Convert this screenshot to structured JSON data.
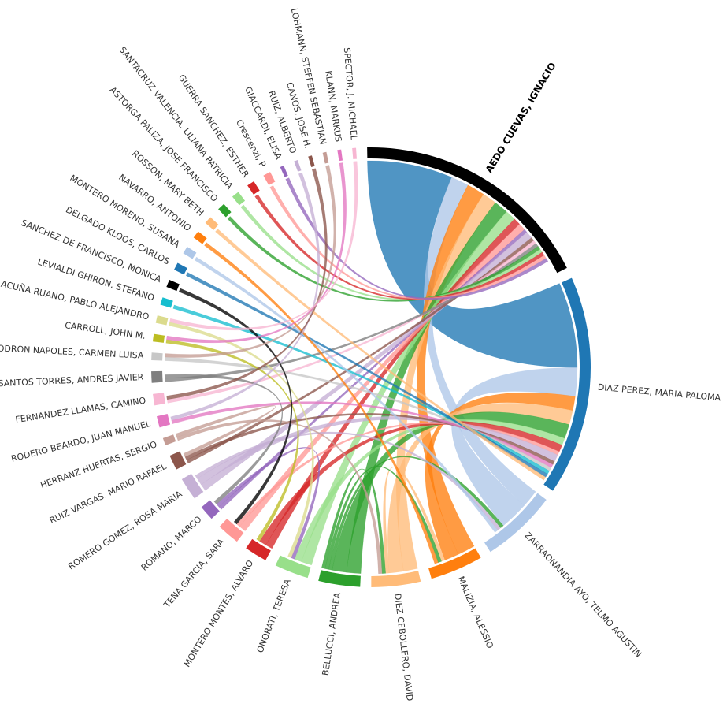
{
  "chart_data": {
    "type": "chord",
    "groups": [
      {
        "name": "AEDO CUEVAS, IGNACIO",
        "color": "#000000",
        "value": 64
      },
      {
        "name": "DIAZ PEREZ, MARIA PALOMA",
        "color": "#1f77b4",
        "value": 58
      },
      {
        "name": "ZARRAONANDIA AYO, TELMO AGUSTIN",
        "color": "#aec7e8",
        "value": 20
      },
      {
        "name": "MALIZIA, ALESSIO",
        "color": "#ff7f0e",
        "value": 14
      },
      {
        "name": "DIEZ CEBOLLERO, DAVID",
        "color": "#ffbb78",
        "value": 13
      },
      {
        "name": "BELLUCCI, ANDREA",
        "color": "#2ca02c",
        "value": 11
      },
      {
        "name": "ONORATI, TERESA",
        "color": "#98df8a",
        "value": 9
      },
      {
        "name": "MONTERO MONTES, ALVARO",
        "color": "#d62728",
        "value": 6
      },
      {
        "name": "TENA GARCIA, SARA",
        "color": "#ff9896",
        "value": 6
      },
      {
        "name": "ROMANO, MARCO",
        "color": "#9467bd",
        "value": 4
      },
      {
        "name": "ROMERO GOMEZ, ROSA MARIA",
        "color": "#c5b0d5",
        "value": 6
      },
      {
        "name": "RUIZ VARGAS, MARIO RAFAEL",
        "color": "#8c564b",
        "value": 4
      },
      {
        "name": "HERRANZ HUERTAS, SERGIO",
        "color": "#c49c94",
        "value": 2
      },
      {
        "name": "RODERO BEARDO, JUAN MANUEL",
        "color": "#e377c2",
        "value": 3
      },
      {
        "name": "FERNANDEZ LLAMAS, CAMINO",
        "color": "#f7b6d2",
        "value": 3
      },
      {
        "name": "SANTOS TORRES, ANDRES JAVIER",
        "color": "#7f7f7f",
        "value": 3
      },
      {
        "name": "RODRON NAPOLES, CARMEN LUISA",
        "color": "#c7c7c7",
        "value": 2
      },
      {
        "name": "CARROLL, JOHN M.",
        "color": "#bcbd22",
        "value": 2
      },
      {
        "name": "ACUÑA RUANO, PABLO ALEJANDRO",
        "color": "#dbdb8d",
        "value": 2
      },
      {
        "name": "LEVIALDI GHIRON, STEFANO",
        "color": "#17becf",
        "value": 2
      },
      {
        "name": "SANCHEZ DE FRANCISCO, MONICA",
        "color": "#000000",
        "value": 2
      },
      {
        "name": "DELGADO KLOOS, CARLOS",
        "color": "#1f77b4",
        "value": 2
      },
      {
        "name": "MONTERO MORENO, SUSANA",
        "color": "#aec7e8",
        "value": 2
      },
      {
        "name": "NAVARRO, ANTONIO",
        "color": "#ff7f0e",
        "value": 2
      },
      {
        "name": "ROSSON, MARY BETH",
        "color": "#ffbb78",
        "value": 2
      },
      {
        "name": "ASTORGA PALIZA, JOSE FRANCISCO",
        "color": "#2ca02c",
        "value": 2
      },
      {
        "name": "SANTACRUZ VALENCIA, LILIANA PATRICIA",
        "color": "#98df8a",
        "value": 2
      },
      {
        "name": "GUERRA SANCHEZ, ESTHER",
        "color": "#d62728",
        "value": 2
      },
      {
        "name": "Crescenzi, P",
        "color": "#ff9896",
        "value": 2
      },
      {
        "name": "GIACCARDI, ELISA",
        "color": "#9467bd",
        "value": 1
      },
      {
        "name": "RUIZ, ALBERTO",
        "color": "#c5b0d5",
        "value": 1
      },
      {
        "name": "CANOS, JOSE H.",
        "color": "#8c564b",
        "value": 1
      },
      {
        "name": "LOHMANN, STEFFEN SEBASTIAN",
        "color": "#c49c94",
        "value": 1
      },
      {
        "name": "KLANN, MARKUS",
        "color": "#e377c2",
        "value": 1
      },
      {
        "name": "SPECTOR, J. MICHAEL",
        "color": "#f7b6d2",
        "value": 1
      }
    ],
    "links": [
      {
        "source": 0,
        "target": 1,
        "value": 24
      },
      {
        "source": 0,
        "target": 2,
        "value": 5
      },
      {
        "source": 0,
        "target": 3,
        "value": 5
      },
      {
        "source": 0,
        "target": 4,
        "value": 4
      },
      {
        "source": 0,
        "target": 5,
        "value": 4
      },
      {
        "source": 0,
        "target": 6,
        "value": 3
      },
      {
        "source": 0,
        "target": 7,
        "value": 2
      },
      {
        "source": 0,
        "target": 8,
        "value": 2
      },
      {
        "source": 0,
        "target": 9,
        "value": 1
      },
      {
        "source": 0,
        "target": 10,
        "value": 2
      },
      {
        "source": 0,
        "target": 11,
        "value": 1
      },
      {
        "source": 0,
        "target": 14,
        "value": 1
      },
      {
        "source": 0,
        "target": 15,
        "value": 1
      },
      {
        "source": 0,
        "target": 25,
        "value": 1
      },
      {
        "source": 0,
        "target": 26,
        "value": 1
      },
      {
        "source": 0,
        "target": 27,
        "value": 1
      },
      {
        "source": 0,
        "target": 28,
        "value": 1
      },
      {
        "source": 0,
        "target": 29,
        "value": 1
      },
      {
        "source": 1,
        "target": 2,
        "value": 8
      },
      {
        "source": 1,
        "target": 3,
        "value": 4
      },
      {
        "source": 1,
        "target": 4,
        "value": 4
      },
      {
        "source": 1,
        "target": 5,
        "value": 4
      },
      {
        "source": 1,
        "target": 6,
        "value": 2
      },
      {
        "source": 1,
        "target": 7,
        "value": 2
      },
      {
        "source": 1,
        "target": 8,
        "value": 1
      },
      {
        "source": 1,
        "target": 10,
        "value": 2
      },
      {
        "source": 1,
        "target": 11,
        "value": 1
      },
      {
        "source": 1,
        "target": 13,
        "value": 1
      },
      {
        "source": 1,
        "target": 16,
        "value": 1
      },
      {
        "source": 1,
        "target": 19,
        "value": 1
      },
      {
        "source": 1,
        "target": 21,
        "value": 1
      },
      {
        "source": 1,
        "target": 24,
        "value": 1
      },
      {
        "source": 2,
        "target": 5,
        "value": 1
      },
      {
        "source": 2,
        "target": 10,
        "value": 1
      },
      {
        "source": 2,
        "target": 22,
        "value": 1
      },
      {
        "source": 3,
        "target": 4,
        "value": 1
      },
      {
        "source": 3,
        "target": 5,
        "value": 1
      },
      {
        "source": 3,
        "target": 23,
        "value": 1
      },
      {
        "source": 4,
        "target": 5,
        "value": 1
      },
      {
        "source": 4,
        "target": 12,
        "value": 1
      },
      {
        "source": 6,
        "target": 9,
        "value": 1
      },
      {
        "source": 6,
        "target": 18,
        "value": 1
      },
      {
        "source": 7,
        "target": 17,
        "value": 1
      },
      {
        "source": 8,
        "target": 20,
        "value": 1
      },
      {
        "source": 9,
        "target": 15,
        "value": 1
      },
      {
        "source": 11,
        "target": 12,
        "value": 1
      },
      {
        "source": 13,
        "target": 30,
        "value": 1
      },
      {
        "source": 14,
        "target": 31,
        "value": 1
      },
      {
        "source": 16,
        "target": 32,
        "value": 1
      },
      {
        "source": 17,
        "target": 33,
        "value": 1
      },
      {
        "source": 18,
        "target": 34,
        "value": 1
      }
    ]
  }
}
